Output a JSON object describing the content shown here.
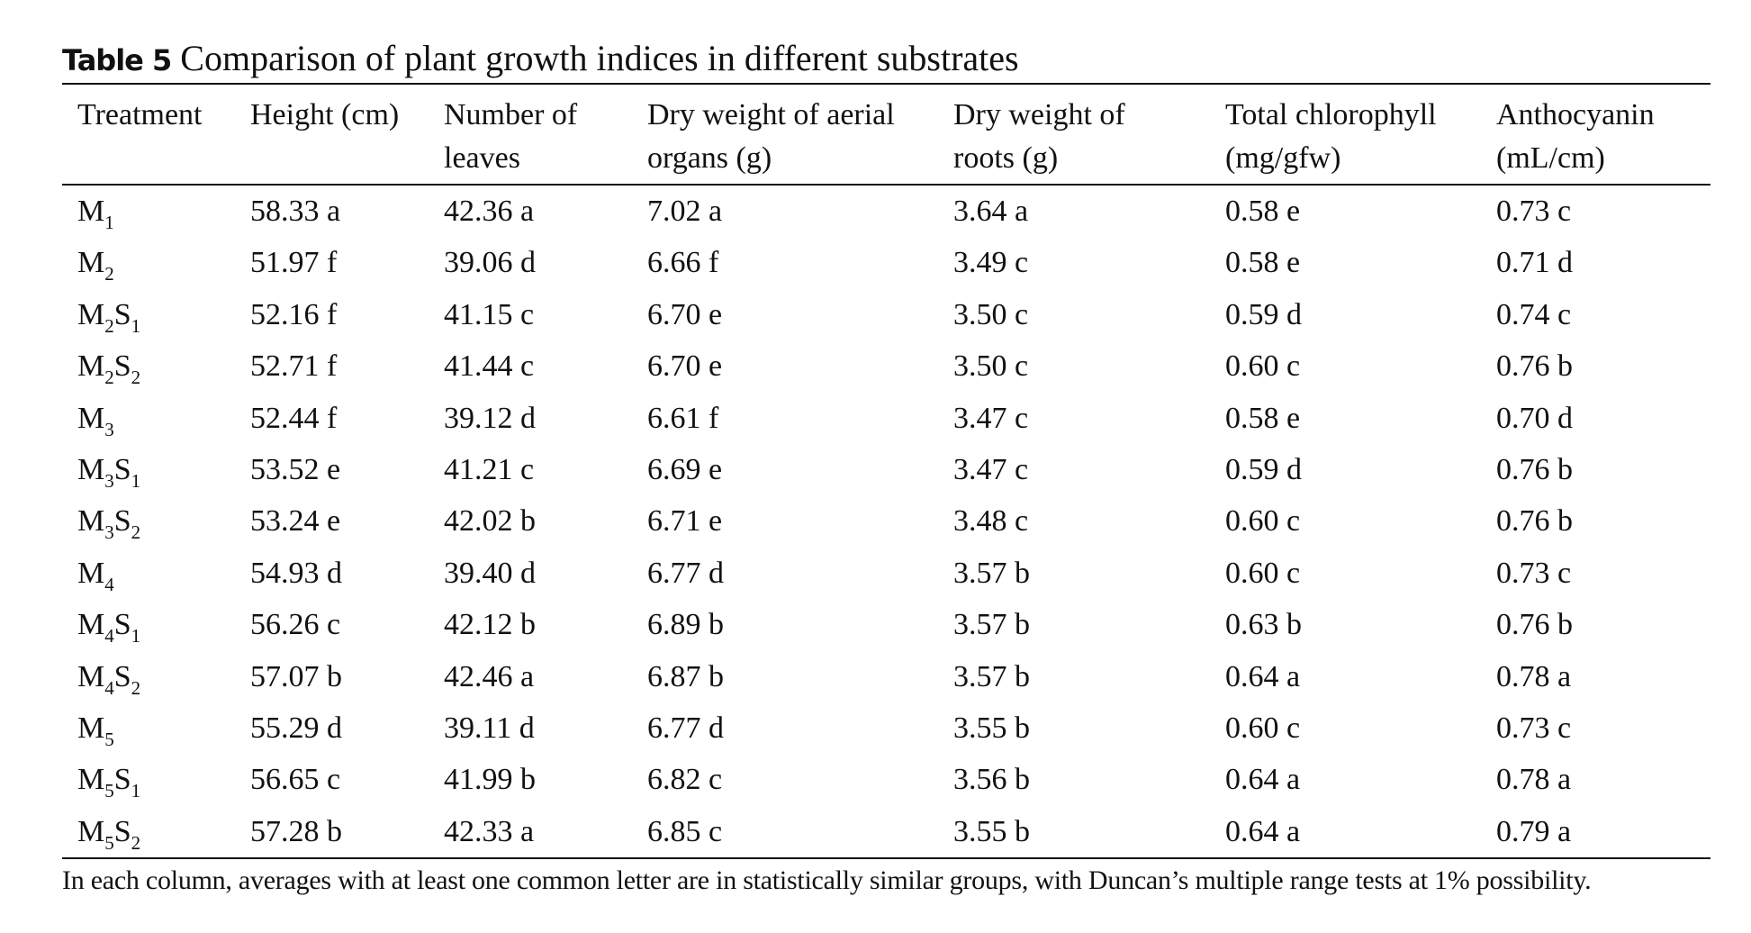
{
  "table": {
    "label": "Table 5",
    "title": "Comparison of plant growth indices in different substrates",
    "headers": [
      {
        "line1": "Treatment",
        "line2": ""
      },
      {
        "line1": "Height (cm)",
        "line2": ""
      },
      {
        "line1": "Number of",
        "line2": "leaves"
      },
      {
        "line1": "Dry weight of aerial",
        "line2": "organs (g)"
      },
      {
        "line1": "Dry weight of",
        "line2": "roots (g)"
      },
      {
        "line1": "Total chlorophyll",
        "line2": "(mg/gfw)"
      },
      {
        "line1": "Anthocyanin",
        "line2": "(mL/cm)"
      }
    ],
    "rows": [
      {
        "treatment": [
          [
            "M",
            "1"
          ]
        ],
        "values": [
          "58.33 a",
          "42.36 a",
          "7.02 a",
          "3.64 a",
          "0.58 e",
          "0.73 c"
        ]
      },
      {
        "treatment": [
          [
            "M",
            "2"
          ]
        ],
        "values": [
          "51.97 f",
          "39.06 d",
          "6.66 f",
          "3.49 c",
          "0.58 e",
          "0.71 d"
        ]
      },
      {
        "treatment": [
          [
            "M",
            "2"
          ],
          [
            "S",
            "1"
          ]
        ],
        "values": [
          "52.16 f",
          "41.15 c",
          "6.70 e",
          "3.50 c",
          "0.59 d",
          "0.74 c"
        ]
      },
      {
        "treatment": [
          [
            "M",
            "2"
          ],
          [
            "S",
            "2"
          ]
        ],
        "values": [
          "52.71 f",
          "41.44 c",
          "6.70 e",
          "3.50 c",
          "0.60 c",
          "0.76 b"
        ]
      },
      {
        "treatment": [
          [
            "M",
            "3"
          ]
        ],
        "values": [
          "52.44 f",
          "39.12 d",
          "6.61 f",
          "3.47 c",
          "0.58 e",
          "0.70 d"
        ]
      },
      {
        "treatment": [
          [
            "M",
            "3"
          ],
          [
            "S",
            "1"
          ]
        ],
        "values": [
          "53.52 e",
          "41.21 c",
          "6.69 e",
          "3.47 c",
          "0.59 d",
          "0.76 b"
        ]
      },
      {
        "treatment": [
          [
            "M",
            "3"
          ],
          [
            "S",
            "2"
          ]
        ],
        "values": [
          "53.24 e",
          "42.02 b",
          "6.71 e",
          "3.48 c",
          "0.60 c",
          "0.76 b"
        ]
      },
      {
        "treatment": [
          [
            "M",
            "4"
          ]
        ],
        "values": [
          "54.93 d",
          "39.40 d",
          "6.77 d",
          "3.57 b",
          "0.60 c",
          "0.73 c"
        ]
      },
      {
        "treatment": [
          [
            "M",
            "4"
          ],
          [
            "S",
            "1"
          ]
        ],
        "values": [
          "56.26 c",
          "42.12 b",
          "6.89 b",
          "3.57 b",
          "0.63 b",
          "0.76 b"
        ]
      },
      {
        "treatment": [
          [
            "M",
            "4"
          ],
          [
            "S",
            "2"
          ]
        ],
        "values": [
          "57.07 b",
          "42.46 a",
          "6.87 b",
          "3.57 b",
          "0.64 a",
          "0.78 a"
        ]
      },
      {
        "treatment": [
          [
            "M",
            "5"
          ]
        ],
        "values": [
          "55.29 d",
          "39.11 d",
          "6.77 d",
          "3.55 b",
          "0.60 c",
          "0.73 c"
        ]
      },
      {
        "treatment": [
          [
            "M",
            "5"
          ],
          [
            "S",
            "1"
          ]
        ],
        "values": [
          "56.65 c",
          "41.99 b",
          "6.82 c",
          "3.56 b",
          "0.64 a",
          "0.78 a"
        ]
      },
      {
        "treatment": [
          [
            "M",
            "5"
          ],
          [
            "S",
            "2"
          ]
        ],
        "values": [
          "57.28 b",
          "42.33 a",
          "6.85 c",
          "3.55 b",
          "0.64 a",
          "0.79 a"
        ]
      }
    ],
    "footnote": "In each column, averages with at least one common letter are in statistically similar groups, with Duncan’s multiple range tests at 1% possibility."
  }
}
